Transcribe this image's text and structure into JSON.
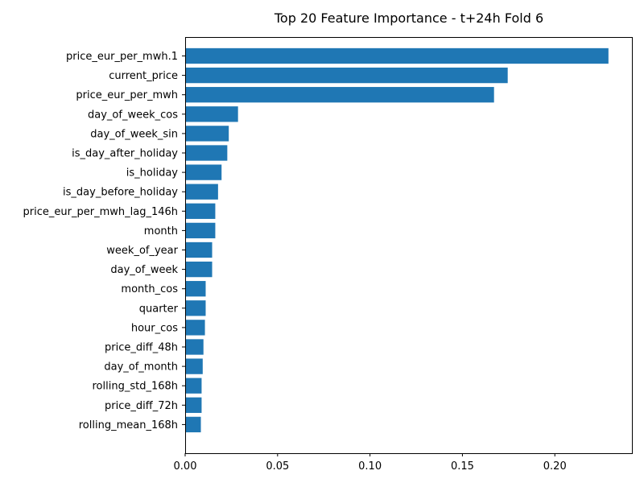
{
  "chart_data": {
    "type": "bar",
    "orientation": "horizontal",
    "title": "Top 20 Feature Importance - t+24h Fold 6",
    "xlabel": "",
    "ylabel": "",
    "xlim": [
      0,
      0.2417
    ],
    "xticks": [
      0.0,
      0.05,
      0.1,
      0.15,
      0.2
    ],
    "xtick_labels": [
      "0.00",
      "0.05",
      "0.10",
      "0.15",
      "0.20"
    ],
    "grid": false,
    "bar_color": "#1f77b4",
    "categories": [
      "price_eur_per_mwh.1",
      "current_price",
      "price_eur_per_mwh",
      "day_of_week_cos",
      "day_of_week_sin",
      "is_day_after_holiday",
      "is_holiday",
      "is_day_before_holiday",
      "price_eur_per_mwh_lag_146h",
      "month",
      "week_of_year",
      "day_of_week",
      "month_cos",
      "quarter",
      "hour_cos",
      "price_diff_48h",
      "day_of_month",
      "rolling_std_168h",
      "price_diff_72h",
      "rolling_mean_168h"
    ],
    "values": [
      0.229,
      0.1745,
      0.1671,
      0.0286,
      0.0236,
      0.0228,
      0.0197,
      0.0178,
      0.0163,
      0.0163,
      0.0146,
      0.0146,
      0.0111,
      0.0111,
      0.0107,
      0.0099,
      0.0095,
      0.0089,
      0.0089,
      0.0085
    ]
  }
}
